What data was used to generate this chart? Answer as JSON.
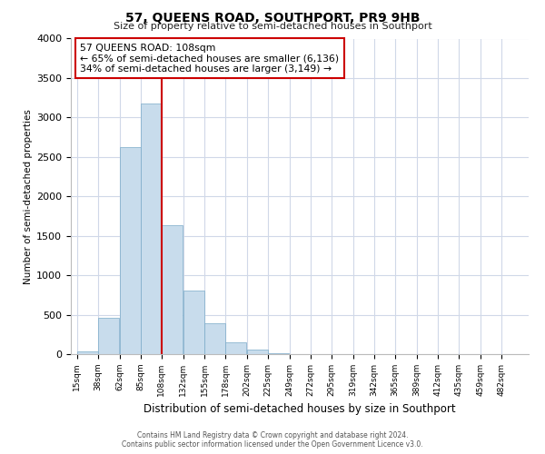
{
  "title": "57, QUEENS ROAD, SOUTHPORT, PR9 9HB",
  "subtitle": "Size of property relative to semi-detached houses in Southport",
  "xlabel": "Distribution of semi-detached houses by size in Southport",
  "ylabel": "Number of semi-detached properties",
  "bin_labels": [
    "15sqm",
    "38sqm",
    "62sqm",
    "85sqm",
    "108sqm",
    "132sqm",
    "155sqm",
    "178sqm",
    "202sqm",
    "225sqm",
    "249sqm",
    "272sqm",
    "295sqm",
    "319sqm",
    "342sqm",
    "365sqm",
    "389sqm",
    "412sqm",
    "435sqm",
    "459sqm",
    "482sqm"
  ],
  "bin_edges": [
    15,
    38,
    62,
    85,
    108,
    132,
    155,
    178,
    202,
    225,
    249,
    272,
    295,
    319,
    342,
    365,
    389,
    412,
    435,
    459,
    482
  ],
  "bar_heights": [
    35,
    460,
    2620,
    3180,
    1640,
    810,
    390,
    155,
    60,
    15,
    5,
    2,
    1,
    0,
    0,
    0,
    1,
    0,
    0,
    0,
    0
  ],
  "property_value": 108,
  "property_line_color": "#cc0000",
  "bar_color": "#c8dcec",
  "bar_edge_color": "#7aaac8",
  "annotation_line1": "57 QUEENS ROAD: 108sqm",
  "annotation_line2": "← 65% of semi-detached houses are smaller (6,136)",
  "annotation_line3": "34% of semi-detached houses are larger (3,149) →",
  "ylim": [
    0,
    4000
  ],
  "yticks": [
    0,
    500,
    1000,
    1500,
    2000,
    2500,
    3000,
    3500,
    4000
  ],
  "background_color": "#ffffff",
  "grid_color": "#d0d8e8",
  "footer_line1": "Contains HM Land Registry data © Crown copyright and database right 2024.",
  "footer_line2": "Contains public sector information licensed under the Open Government Licence v3.0."
}
